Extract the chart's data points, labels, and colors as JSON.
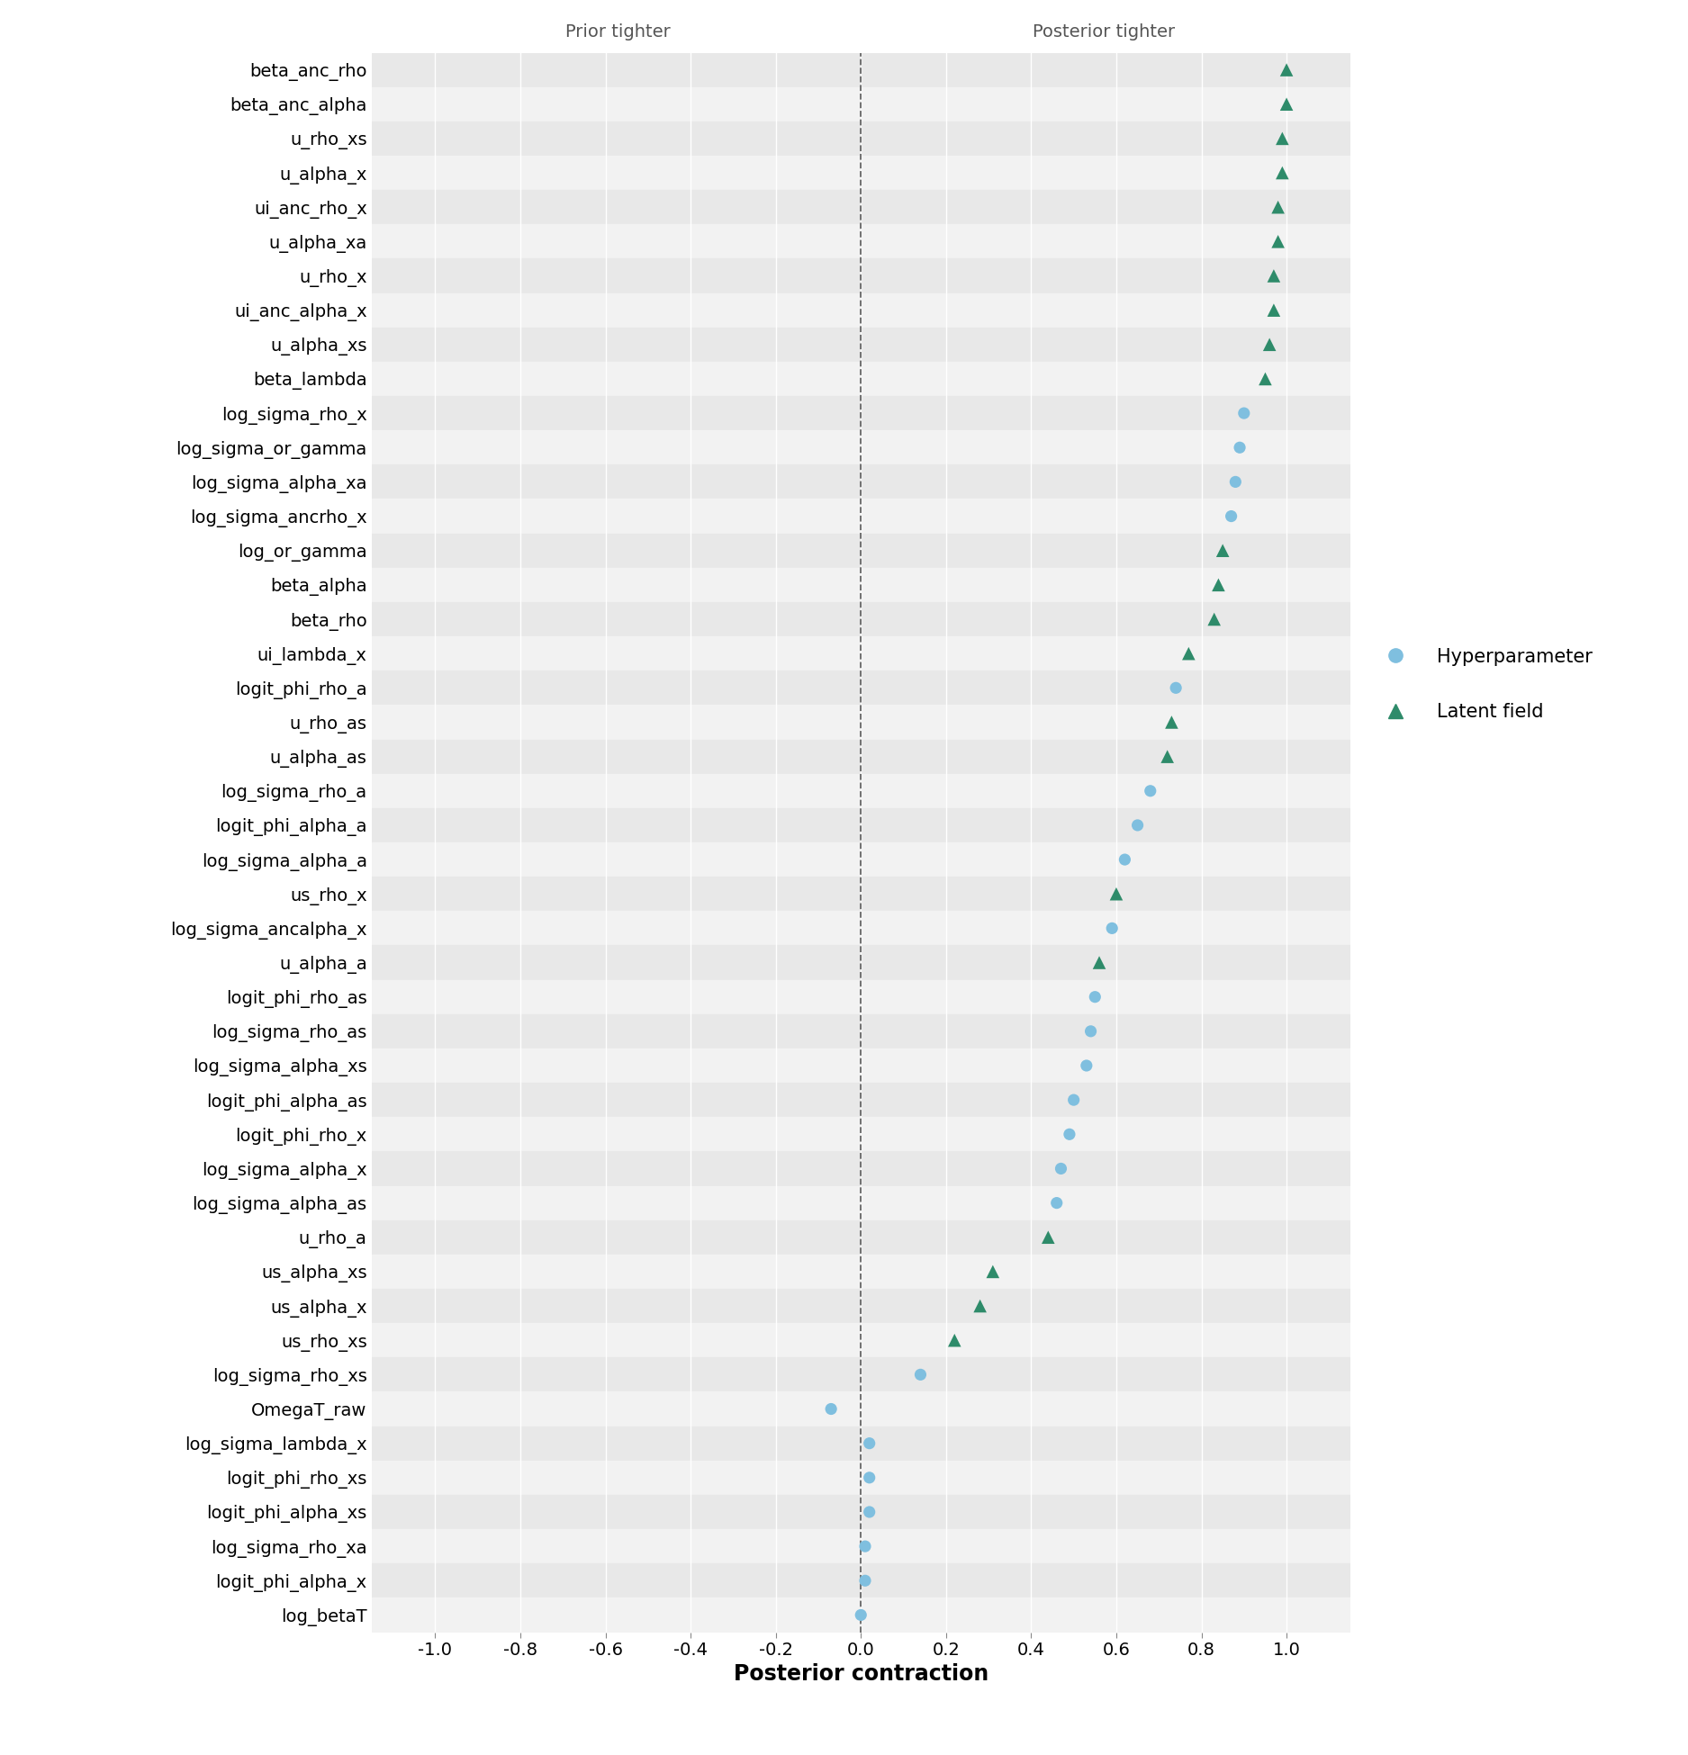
{
  "parameters": [
    "beta_anc_rho",
    "beta_anc_alpha",
    "u_rho_xs",
    "u_alpha_x",
    "ui_anc_rho_x",
    "u_alpha_xa",
    "u_rho_x",
    "ui_anc_alpha_x",
    "u_alpha_xs",
    "beta_lambda",
    "log_sigma_rho_x",
    "log_sigma_or_gamma",
    "log_sigma_alpha_xa",
    "log_sigma_ancrho_x",
    "log_or_gamma",
    "beta_alpha",
    "beta_rho",
    "ui_lambda_x",
    "logit_phi_rho_a",
    "u_rho_as",
    "u_alpha_as",
    "log_sigma_rho_a",
    "logit_phi_alpha_a",
    "log_sigma_alpha_a",
    "us_rho_x",
    "log_sigma_ancalpha_x",
    "u_alpha_a",
    "logit_phi_rho_as",
    "log_sigma_rho_as",
    "log_sigma_alpha_xs",
    "logit_phi_alpha_as",
    "logit_phi_rho_x",
    "log_sigma_alpha_x",
    "log_sigma_alpha_as",
    "u_rho_a",
    "us_alpha_xs",
    "us_alpha_x",
    "us_rho_xs",
    "log_sigma_rho_xs",
    "OmegaT_raw",
    "log_sigma_lambda_x",
    "logit_phi_rho_xs",
    "logit_phi_alpha_xs",
    "log_sigma_rho_xa",
    "logit_phi_alpha_x",
    "log_betaT"
  ],
  "values": [
    1.0,
    1.0,
    0.99,
    0.99,
    0.98,
    0.98,
    0.97,
    0.97,
    0.96,
    0.95,
    0.9,
    0.89,
    0.88,
    0.87,
    0.85,
    0.84,
    0.83,
    0.77,
    0.74,
    0.73,
    0.72,
    0.68,
    0.65,
    0.62,
    0.6,
    0.59,
    0.56,
    0.55,
    0.54,
    0.53,
    0.5,
    0.49,
    0.47,
    0.46,
    0.44,
    0.31,
    0.28,
    0.22,
    0.14,
    -0.07,
    0.02,
    0.02,
    0.02,
    0.01,
    0.01,
    0.0
  ],
  "types": [
    "latent",
    "latent",
    "latent",
    "latent",
    "latent",
    "latent",
    "latent",
    "latent",
    "latent",
    "latent",
    "hyper",
    "hyper",
    "hyper",
    "hyper",
    "latent",
    "latent",
    "latent",
    "latent",
    "hyper",
    "latent",
    "latent",
    "hyper",
    "hyper",
    "hyper",
    "latent",
    "hyper",
    "latent",
    "hyper",
    "hyper",
    "hyper",
    "hyper",
    "hyper",
    "hyper",
    "hyper",
    "latent",
    "latent",
    "latent",
    "latent",
    "hyper",
    "hyper",
    "hyper",
    "hyper",
    "hyper",
    "hyper",
    "hyper",
    "hyper"
  ],
  "hyper_color": "#7FBFDF",
  "latent_color": "#2E8B6A",
  "background_color": "#FFFFFF",
  "panel_bg_color": "#EBEBEB",
  "grid_color": "#FFFFFF",
  "row_odd_color": "#E8E8E8",
  "row_even_color": "#F2F2F2",
  "xlabel": "Posterior contraction",
  "xlim": [
    -1.15,
    1.15
  ],
  "xticks": [
    -1.0,
    -0.8,
    -0.6,
    -0.4,
    -0.2,
    0.0,
    0.2,
    0.4,
    0.6,
    0.8,
    1.0
  ],
  "xtick_labels": [
    "-1.0",
    "-0.8",
    "-0.6",
    "-0.4",
    "-0.2",
    "0.0",
    "0.2",
    "0.4",
    "0.6",
    "0.8",
    "1.0"
  ],
  "prior_tighter_label": "Prior tighter",
  "posterior_tighter_label": "Posterior tighter",
  "legend_hyper_label": "Hyperparameter",
  "legend_latent_label": "Latent field",
  "marker_hyper": "o",
  "marker_latent": "^",
  "marker_size_hyper": 90,
  "marker_size_latent": 110,
  "ytick_fontsize": 14,
  "xtick_fontsize": 14,
  "xlabel_fontsize": 17,
  "annotation_fontsize": 14,
  "legend_fontsize": 15
}
